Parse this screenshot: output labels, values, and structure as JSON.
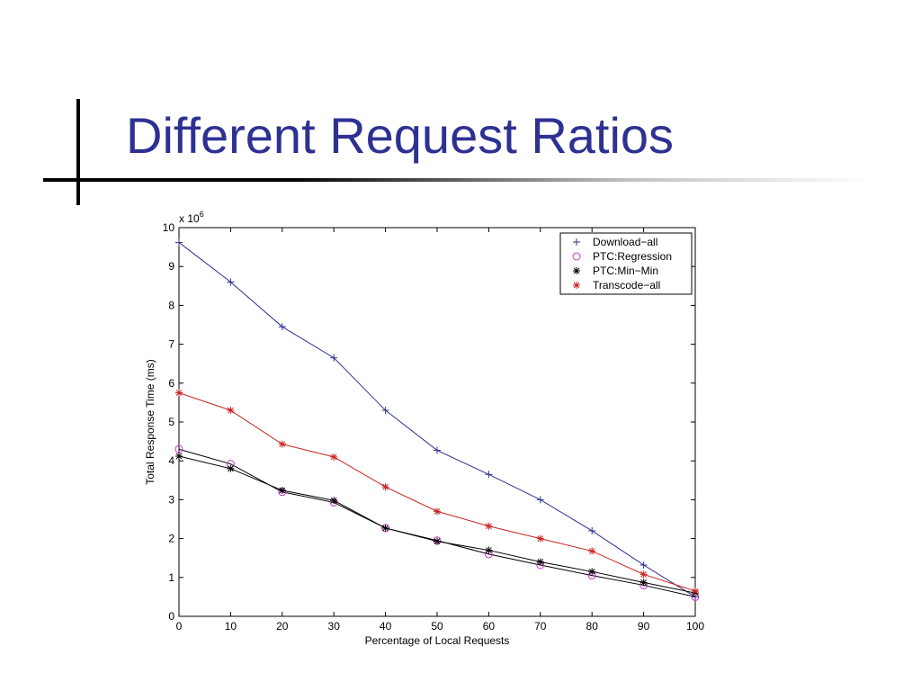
{
  "slide": {
    "title": "Different Request Ratios"
  },
  "chart_data": {
    "type": "line",
    "xlabel": "Percentage of Local Requests",
    "ylabel": "Total Response Time (ms)",
    "y_multiplier": "x 10^6",
    "y_multiplier_base": "x 10",
    "y_multiplier_exp": "6",
    "xlim": [
      0,
      100
    ],
    "ylim": [
      0,
      10
    ],
    "x_ticks": [
      0,
      10,
      20,
      30,
      40,
      50,
      60,
      70,
      80,
      90,
      100
    ],
    "y_ticks": [
      0,
      1,
      2,
      3,
      4,
      5,
      6,
      7,
      8,
      9,
      10
    ],
    "x": [
      0,
      10,
      20,
      30,
      40,
      50,
      60,
      70,
      80,
      90,
      100
    ],
    "grid": false,
    "legend_position": "top-right",
    "series": [
      {
        "name": "Download−all",
        "color": "#2e3192",
        "marker": "plus",
        "values": [
          9.62,
          8.6,
          7.45,
          6.65,
          5.3,
          4.27,
          3.65,
          3.0,
          2.2,
          1.32,
          0.5
        ]
      },
      {
        "name": "PTC:Regression",
        "color": "#cc33cc",
        "marker": "circle",
        "line_color": "#000000",
        "values": [
          4.3,
          3.92,
          3.2,
          2.93,
          2.27,
          1.95,
          1.6,
          1.32,
          1.05,
          0.8,
          0.5
        ]
      },
      {
        "name": "PTC:Min−Min",
        "color": "#000000",
        "marker": "star",
        "values": [
          4.12,
          3.8,
          3.24,
          2.98,
          2.27,
          1.93,
          1.7,
          1.4,
          1.15,
          0.87,
          0.6
        ]
      },
      {
        "name": "Transcode−all",
        "color": "#cc2222",
        "marker": "star",
        "values": [
          5.75,
          5.3,
          4.43,
          4.1,
          3.33,
          2.7,
          2.32,
          2.0,
          1.68,
          1.08,
          0.65
        ]
      }
    ]
  }
}
